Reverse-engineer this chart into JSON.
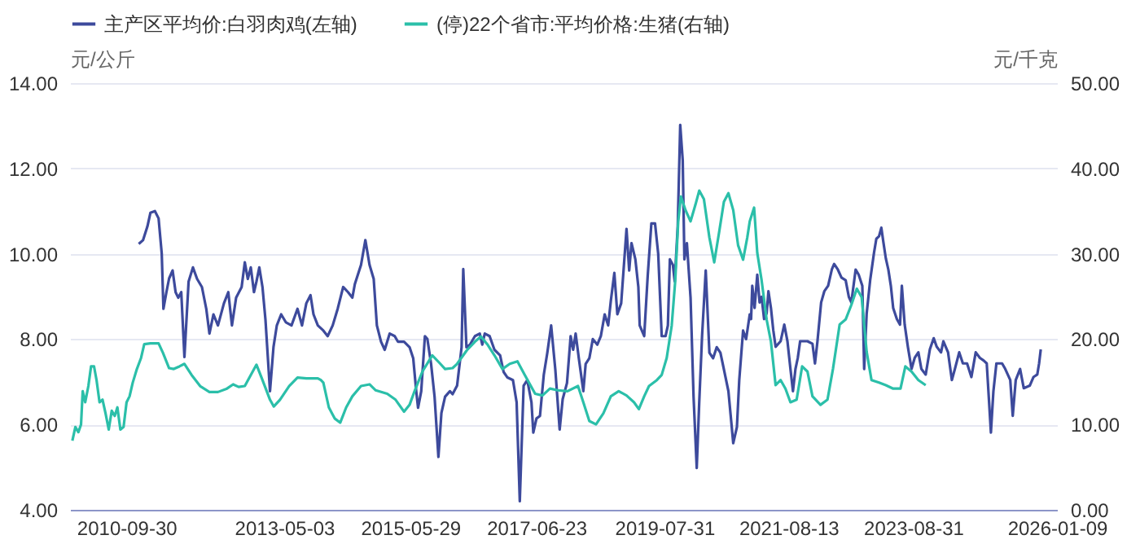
{
  "chart_data": {
    "type": "line",
    "ylabel": "元/公斤",
    "y2label": "元/千克",
    "legend": "top",
    "grid": "y",
    "xlim": [
      "2009-10-27",
      "2026-01-09"
    ],
    "xticks": [
      "2010-09-30",
      "2013-05-03",
      "2015-05-29",
      "2017-06-23",
      "2019-07-31",
      "2021-08-13",
      "2023-08-31",
      "2026-01-09"
    ],
    "ylim": [
      4,
      14
    ],
    "yticks": [
      {
        "value": 4,
        "label": "4.00"
      },
      {
        "value": 6,
        "label": "6.00"
      },
      {
        "value": 8,
        "label": "8.00"
      },
      {
        "value": 10,
        "label": "10.00"
      },
      {
        "value": 12,
        "label": "12.00"
      },
      {
        "value": 14,
        "label": "14.00"
      }
    ],
    "y2lim": [
      0,
      50
    ],
    "y2ticks": [
      {
        "value": 0,
        "label": "0.00"
      },
      {
        "value": 10,
        "label": "10.00"
      },
      {
        "value": 20,
        "label": "20.00"
      },
      {
        "value": 30,
        "label": "30.00"
      },
      {
        "value": 40,
        "label": "40.00"
      },
      {
        "value": 50,
        "label": "50.00"
      }
    ],
    "series": [
      {
        "name": "主产区平均价:白羽肉鸡(左轴)",
        "color": "#3d4a9c",
        "x": [
          "2010-12-13",
          "2011-01-08",
          "2011-02-03",
          "2011-02-21",
          "2011-03-20",
          "2011-04-11",
          "2011-04-30",
          "2011-05-10",
          "2011-05-28",
          "2011-06-13",
          "2011-07-04",
          "2011-07-22",
          "2011-08-07",
          "2011-08-25",
          "2011-09-13",
          "2011-10-08",
          "2011-11-03",
          "2011-11-28",
          "2011-12-27",
          "2012-01-22",
          "2012-02-10",
          "2012-03-05",
          "2012-04-01",
          "2012-05-07",
          "2012-06-02",
          "2012-06-24",
          "2012-07-19",
          "2012-08-21",
          "2012-09-09",
          "2012-09-27",
          "2012-10-15",
          "2012-11-03",
          "2012-11-18",
          "2012-12-05",
          "2012-12-24",
          "2013-01-11",
          "2013-02-07",
          "2013-02-28",
          "2013-03-20",
          "2013-04-15",
          "2013-05-14",
          "2013-06-16",
          "2013-07-22",
          "2013-08-18",
          "2013-09-13",
          "2013-10-08",
          "2013-10-26",
          "2013-11-21",
          "2013-12-24",
          "2014-01-19",
          "2014-02-18",
          "2014-03-20",
          "2014-04-22",
          "2014-05-21",
          "2014-06-16",
          "2014-07-01",
          "2014-08-07",
          "2014-09-02",
          "2014-09-27",
          "2014-10-22",
          "2014-11-10",
          "2014-12-05",
          "2014-12-27",
          "2015-01-26",
          "2015-02-25",
          "2015-03-16",
          "2015-04-22",
          "2015-05-25",
          "2015-06-16",
          "2015-07-04",
          "2015-07-15",
          "2015-08-03",
          "2015-08-25",
          "2015-09-09",
          "2015-10-01",
          "2015-10-22",
          "2015-11-14",
          "2015-12-02",
          "2015-12-24",
          "2016-01-22",
          "2016-02-07",
          "2016-03-05",
          "2016-04-01",
          "2016-04-11",
          "2016-04-30",
          "2016-05-21",
          "2016-06-20",
          "2016-07-19",
          "2016-08-03",
          "2016-08-18",
          "2016-09-16",
          "2016-10-15",
          "2016-11-18",
          "2016-12-09",
          "2017-01-01",
          "2017-02-03",
          "2017-02-25",
          "2017-03-16",
          "2017-04-08",
          "2017-04-30",
          "2017-05-25",
          "2017-06-05",
          "2017-06-24",
          "2017-07-15",
          "2017-08-07",
          "2017-08-28",
          "2017-09-20",
          "2017-10-15",
          "2017-11-10",
          "2017-11-28",
          "2017-12-24",
          "2018-01-15",
          "2018-01-30",
          "2018-02-14",
          "2018-03-05",
          "2018-04-01",
          "2018-04-15",
          "2018-05-07",
          "2018-05-28",
          "2018-06-24",
          "2018-07-15",
          "2018-08-07",
          "2018-08-28",
          "2018-09-13",
          "2018-10-04",
          "2018-10-22",
          "2018-11-14",
          "2018-12-16",
          "2019-01-01",
          "2019-01-15",
          "2019-02-07",
          "2019-02-25",
          "2019-03-05",
          "2019-04-01",
          "2019-04-22",
          "2019-05-14",
          "2019-06-05",
          "2019-06-24",
          "2019-07-15",
          "2019-08-07",
          "2019-08-21",
          "2019-09-02",
          "2019-09-20",
          "2019-10-01",
          "2019-10-19",
          "2019-11-03",
          "2019-11-18",
          "2019-11-28",
          "2019-12-13",
          "2020-01-04",
          "2020-01-22",
          "2020-02-10",
          "2020-02-25",
          "2020-03-13",
          "2020-04-04",
          "2020-04-26",
          "2020-05-18",
          "2020-06-09",
          "2020-07-01",
          "2020-07-22",
          "2020-08-18",
          "2020-09-16",
          "2020-10-08",
          "2020-10-22",
          "2020-11-14",
          "2020-12-02",
          "2020-12-24",
          "2021-01-01",
          "2021-01-08",
          "2021-01-22",
          "2021-02-07",
          "2021-02-21",
          "2021-03-05",
          "2021-03-20",
          "2021-04-04",
          "2021-04-15",
          "2021-04-30",
          "2021-05-14",
          "2021-05-28",
          "2021-06-27",
          "2021-07-19",
          "2021-08-07",
          "2021-08-25",
          "2021-09-09",
          "2021-09-24",
          "2021-10-08",
          "2021-10-22",
          "2021-11-14",
          "2021-12-05",
          "2022-01-04",
          "2022-01-19",
          "2022-02-03",
          "2022-02-25",
          "2022-03-16",
          "2022-04-08",
          "2022-04-30",
          "2022-05-14",
          "2022-06-05",
          "2022-06-27",
          "2022-07-22",
          "2022-08-10",
          "2022-08-25",
          "2022-09-20",
          "2022-10-08",
          "2022-10-30",
          "2022-11-10",
          "2022-11-25",
          "2022-12-16",
          "2023-01-08",
          "2023-01-22",
          "2023-02-07",
          "2023-02-21",
          "2023-03-05",
          "2023-03-20",
          "2023-04-04",
          "2023-04-19",
          "2023-05-03",
          "2023-05-25",
          "2023-06-13",
          "2023-06-24",
          "2023-07-11",
          "2023-07-30",
          "2023-08-21",
          "2023-09-09",
          "2023-10-01",
          "2023-10-19",
          "2023-11-14",
          "2023-12-09",
          "2024-01-01",
          "2024-01-19",
          "2024-02-14",
          "2024-02-28",
          "2024-03-27",
          "2024-04-19",
          "2024-05-07",
          "2024-06-02",
          "2024-06-24",
          "2024-07-19",
          "2024-08-14",
          "2024-09-09",
          "2024-10-04",
          "2024-10-26",
          "2024-11-14",
          "2024-11-28",
          "2024-12-09",
          "2024-12-24",
          "2025-01-11",
          "2025-02-14",
          "2025-03-05",
          "2025-04-04",
          "2025-04-19",
          "2025-05-07",
          "2025-06-02",
          "2025-06-24",
          "2025-07-30",
          "2025-08-21",
          "2025-09-13",
          "2025-09-24",
          "2025-10-04"
        ],
        "values": [
          10.23,
          10.32,
          10.64,
          10.96,
          11.0,
          10.83,
          10.0,
          8.71,
          9.1,
          9.42,
          9.61,
          9.1,
          8.97,
          9.1,
          7.58,
          9.35,
          9.68,
          9.41,
          9.22,
          8.71,
          8.13,
          8.58,
          8.32,
          8.84,
          9.1,
          8.32,
          8.97,
          9.22,
          9.8,
          9.41,
          9.68,
          9.1,
          9.35,
          9.68,
          9.22,
          8.45,
          6.78,
          7.81,
          8.32,
          8.58,
          8.39,
          8.32,
          8.71,
          8.32,
          8.84,
          9.03,
          8.58,
          8.32,
          8.2,
          8.07,
          8.32,
          8.71,
          9.22,
          9.1,
          8.97,
          9.29,
          9.74,
          10.32,
          9.74,
          9.41,
          8.32,
          7.94,
          7.75,
          8.13,
          8.07,
          7.94,
          7.94,
          7.81,
          7.55,
          6.78,
          6.39,
          6.78,
          8.07,
          8.0,
          7.42,
          6.65,
          5.24,
          6.27,
          6.65,
          6.78,
          6.71,
          6.91,
          7.81,
          9.64,
          7.81,
          7.87,
          8.07,
          8.13,
          7.87,
          8.13,
          8.07,
          7.75,
          7.62,
          7.23,
          7.1,
          7.04,
          6.52,
          4.2,
          6.91,
          7.04,
          6.52,
          5.81,
          6.14,
          6.2,
          7.17,
          7.68,
          8.32,
          7.29,
          5.88,
          6.59,
          6.97,
          8.07,
          7.75,
          8.13,
          7.55,
          6.78,
          7.42,
          7.55,
          8.0,
          7.87,
          8.07,
          8.58,
          8.32,
          8.9,
          9.55,
          8.58,
          8.84,
          10.58,
          9.61,
          10.25,
          9.87,
          9.22,
          8.32,
          8.07,
          9.48,
          10.71,
          10.71,
          10.0,
          8.07,
          8.07,
          8.32,
          9.87,
          9.74,
          9.35,
          10.64,
          13.02,
          12.19,
          9.87,
          10.25,
          8.97,
          6.65,
          4.98,
          6.52,
          8.07,
          9.61,
          7.68,
          7.55,
          7.81,
          7.68,
          7.29,
          6.78,
          5.56,
          5.94,
          7.04,
          8.2,
          8.0,
          8.58,
          8.47,
          9.25,
          8.73,
          9.51,
          8.86,
          8.99,
          8.47,
          8.6,
          9.12,
          8.73,
          8.21,
          7.82,
          7.95,
          8.34,
          7.95,
          7.3,
          6.78,
          7.3,
          7.56,
          7.95,
          7.95,
          7.95,
          7.89,
          7.43,
          7.95,
          8.86,
          9.12,
          9.25,
          9.63,
          9.76,
          9.63,
          9.44,
          9.38,
          8.99,
          8.86,
          9.63,
          9.51,
          9.25,
          7.3,
          8.6,
          9.38,
          10.02,
          10.35,
          10.41,
          10.61,
          10.28,
          9.89,
          9.63,
          9.25,
          8.73,
          8.47,
          8.34,
          9.25,
          8.34,
          7.82,
          7.3,
          7.56,
          7.69,
          7.3,
          7.17,
          7.76,
          8.02,
          7.82,
          7.69,
          7.95,
          7.69,
          7.04,
          7.3,
          7.69,
          7.43,
          7.43,
          7.11,
          7.69,
          7.56,
          7.5,
          7.43,
          6.53,
          5.81,
          6.78,
          7.43,
          7.43,
          7.3,
          7.04,
          6.2,
          7.04,
          7.3,
          6.85,
          6.91,
          7.11,
          7.17,
          7.43,
          7.76
        ]
      },
      {
        "name": "(停)22个省市:平均价格:生猪(右轴)",
        "color": "#2bbfa9",
        "axis": "y2",
        "x": [
          "2009-11-10",
          "2009-11-28",
          "2009-12-16",
          "2010-01-01",
          "2010-01-11",
          "2010-01-26",
          "2010-02-14",
          "2010-03-02",
          "2010-03-20",
          "2010-04-04",
          "2010-04-22",
          "2010-05-10",
          "2010-05-28",
          "2010-06-16",
          "2010-07-04",
          "2010-07-22",
          "2010-08-07",
          "2010-08-25",
          "2010-09-13",
          "2010-10-01",
          "2010-10-19",
          "2010-11-07",
          "2010-12-02",
          "2010-12-27",
          "2011-01-15",
          "2011-02-21",
          "2011-04-11",
          "2011-05-07",
          "2011-06-13",
          "2011-07-11",
          "2011-08-14",
          "2011-09-13",
          "2011-10-26",
          "2011-12-16",
          "2012-02-10",
          "2012-04-01",
          "2012-05-25",
          "2012-07-01",
          "2012-08-03",
          "2012-09-09",
          "2012-10-15",
          "2012-11-18",
          "2012-12-24",
          "2013-02-07",
          "2013-03-02",
          "2013-04-08",
          "2013-06-02",
          "2013-07-22",
          "2013-09-13",
          "2013-11-21",
          "2013-12-09",
          "2013-12-24",
          "2014-01-26",
          "2014-03-02",
          "2014-04-04",
          "2014-05-10",
          "2014-06-16",
          "2014-08-07",
          "2014-09-27",
          "2014-11-03",
          "2015-01-11",
          "2015-03-02",
          "2015-04-22",
          "2015-05-25",
          "2015-06-24",
          "2015-08-10",
          "2015-10-08",
          "2015-11-21",
          "2015-12-24",
          "2016-02-07",
          "2016-03-05",
          "2016-05-03",
          "2016-06-20",
          "2016-07-26",
          "2016-09-02",
          "2016-10-15",
          "2016-12-02",
          "2017-01-15",
          "2017-03-02",
          "2017-04-15",
          "2017-06-16",
          "2017-07-30",
          "2017-09-13",
          "2017-10-30",
          "2017-12-27",
          "2018-02-28",
          "2018-04-01",
          "2018-05-07",
          "2018-06-16",
          "2018-07-30",
          "2018-09-13",
          "2018-10-30",
          "2018-12-16",
          "2019-01-30",
          "2019-02-28",
          "2019-04-01",
          "2019-04-30",
          "2019-06-16",
          "2019-07-15",
          "2019-08-14",
          "2019-09-13",
          "2019-10-04",
          "2019-10-22",
          "2019-11-07",
          "2019-12-05",
          "2020-01-04",
          "2020-02-03",
          "2020-02-25",
          "2020-03-24",
          "2020-04-26",
          "2020-05-25",
          "2020-06-24",
          "2020-07-22",
          "2020-08-18",
          "2020-09-16",
          "2020-10-15",
          "2020-11-14",
          "2020-12-09",
          "2020-12-24",
          "2021-01-19",
          "2021-02-07",
          "2021-03-05",
          "2021-04-04",
          "2021-04-30",
          "2021-05-28",
          "2021-06-27",
          "2021-07-26",
          "2021-08-25",
          "2021-10-01",
          "2021-11-03",
          "2021-12-05",
          "2022-01-04",
          "2022-02-21",
          "2022-04-04",
          "2022-05-07",
          "2022-06-16",
          "2022-07-22",
          "2022-08-25",
          "2022-09-27",
          "2022-10-26",
          "2022-11-25",
          "2022-12-24",
          "2023-02-07",
          "2023-03-20",
          "2023-05-03",
          "2023-06-16",
          "2023-07-15",
          "2023-08-21",
          "2023-10-01",
          "2023-11-14"
        ],
        "values": [
          8.1,
          9.7,
          9.1,
          10.0,
          13.9,
          12.6,
          14.5,
          16.8,
          16.8,
          15.2,
          12.6,
          12.9,
          11.3,
          9.4,
          11.6,
          11.0,
          12.0,
          9.4,
          9.7,
          12.6,
          13.3,
          14.9,
          16.5,
          17.8,
          19.4,
          19.5,
          19.5,
          18.4,
          16.6,
          16.5,
          16.8,
          17.1,
          15.8,
          14.5,
          13.8,
          13.8,
          14.2,
          14.7,
          14.4,
          14.5,
          15.8,
          17.0,
          15.2,
          12.9,
          12.1,
          12.9,
          14.5,
          15.5,
          15.4,
          15.4,
          15.2,
          14.9,
          12.0,
          10.7,
          10.2,
          12.0,
          13.3,
          14.5,
          14.7,
          14.0,
          13.6,
          12.9,
          11.5,
          12.3,
          13.9,
          16.2,
          18.1,
          17.2,
          16.5,
          16.6,
          17.1,
          18.7,
          19.7,
          20.3,
          19.4,
          18.1,
          16.5,
          17.1,
          17.4,
          15.8,
          13.6,
          13.4,
          14.2,
          14.0,
          13.9,
          14.5,
          12.6,
          10.4,
          10.0,
          11.3,
          13.3,
          13.9,
          13.4,
          12.6,
          11.8,
          13.3,
          14.5,
          15.2,
          15.8,
          17.8,
          21.6,
          26.8,
          33.8,
          36.7,
          35.1,
          33.8,
          35.8,
          37.4,
          36.4,
          31.9,
          29.0,
          32.6,
          36.1,
          37.1,
          35.1,
          31.0,
          29.3,
          31.9,
          33.8,
          35.4,
          30.1,
          26.9,
          22.3,
          19.7,
          14.6,
          15.2,
          14.2,
          12.6,
          12.9,
          16.8,
          16.2,
          13.3,
          12.3,
          12.9,
          16.5,
          21.7,
          22.3,
          24.0,
          25.9,
          24.9,
          18.5,
          15.2,
          14.9,
          14.6,
          14.2,
          14.2,
          16.8,
          16.2,
          15.2,
          14.6
        ]
      }
    ]
  }
}
